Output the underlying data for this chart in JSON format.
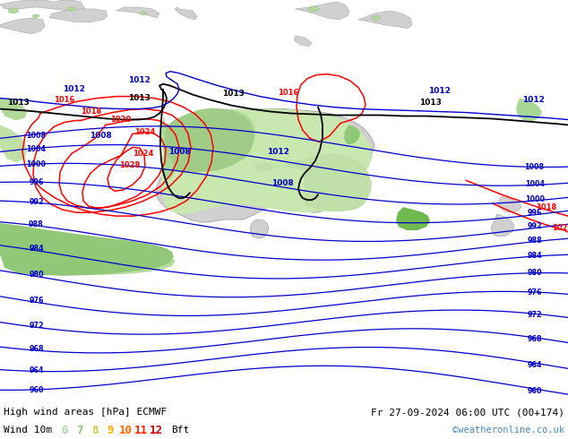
{
  "title_left": "High wind areas [hPa] ECMWF",
  "title_right": "Fr 27-09-2024 06:00 UTC (00+174)",
  "subtitle_left": "Wind 10m",
  "legend_values": [
    "6",
    "7",
    "8",
    "9",
    "10",
    "11",
    "12"
  ],
  "legend_colors": [
    "#aaddaa",
    "#88cc77",
    "#cccc44",
    "#ffaa00",
    "#ff6600",
    "#ff2200",
    "#cc0000"
  ],
  "bft_color": "#000000",
  "copyright": "©weatheronline.co.uk",
  "copyright_color": "#4488cc",
  "bg_color": "#c8c8c8",
  "sea_color": "#d8d8d8",
  "land_color": "#d8d8d8",
  "bottom_bar_color": "#ffffff",
  "fig_width": 6.34,
  "fig_height": 4.9,
  "dpi": 100
}
